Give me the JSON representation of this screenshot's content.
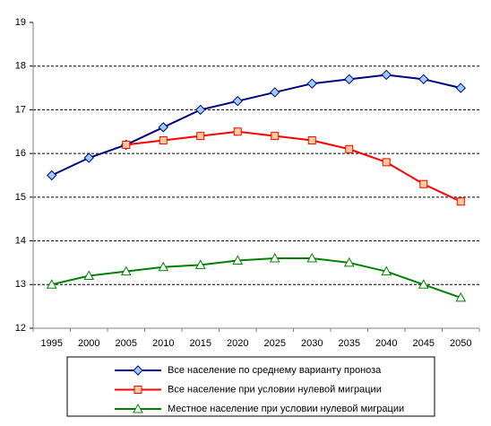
{
  "chart_data": {
    "type": "line",
    "categories": [
      "1995",
      "2000",
      "2005",
      "2010",
      "2015",
      "2020",
      "2025",
      "2030",
      "2035",
      "2040",
      "2045",
      "2050"
    ],
    "series": [
      {
        "name": "Все население по среднему варианту проноза",
        "color": "#000080",
        "marker": "diamond",
        "marker_fill": "#99ccff",
        "values": [
          15.5,
          15.9,
          16.2,
          16.6,
          17.0,
          17.2,
          17.4,
          17.6,
          17.7,
          17.8,
          17.7,
          17.5
        ]
      },
      {
        "name": "Все население при условии нулевой миграции",
        "color": "#ff0000",
        "marker": "square",
        "marker_fill": "#ffcc99",
        "values": [
          null,
          null,
          16.2,
          16.3,
          16.4,
          16.5,
          16.4,
          16.3,
          16.1,
          15.8,
          15.3,
          14.9
        ]
      },
      {
        "name": "Местное население при условии нулевой миграции",
        "color": "#008000",
        "marker": "triangle",
        "marker_fill": "#ffffff",
        "values": [
          13.0,
          13.2,
          13.3,
          13.4,
          13.45,
          13.55,
          13.6,
          13.6,
          13.5,
          13.3,
          13.0,
          12.7
        ]
      }
    ],
    "ylim": [
      12,
      19
    ],
    "yticks": [
      12,
      13,
      14,
      15,
      16,
      17,
      18,
      19
    ],
    "grid": true,
    "legend": "bottom"
  }
}
